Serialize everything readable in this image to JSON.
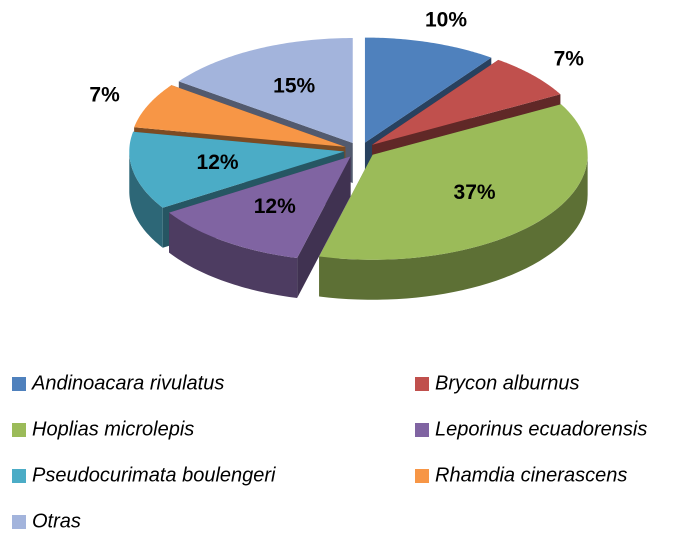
{
  "chart_data": {
    "type": "pie",
    "categories": [
      "Andinoacara rivulatus",
      "Brycon alburnus",
      "Hoplias microlepis",
      "Leporinus ecuadorensis",
      "Pseudocurimata boulengeri",
      "Rhamdia cinerascens",
      "Otras"
    ],
    "values": [
      10,
      7,
      37,
      12,
      12,
      7,
      15
    ],
    "value_labels": [
      "10%",
      "7%",
      "37%",
      "12%",
      "12%",
      "7%",
      "15%"
    ],
    "colors": [
      "#4f81bd",
      "#c0504d",
      "#9bbb59",
      "#8064a2",
      "#4bacc6",
      "#f79646",
      "#a3b4dc"
    ],
    "legend": "bottom"
  }
}
